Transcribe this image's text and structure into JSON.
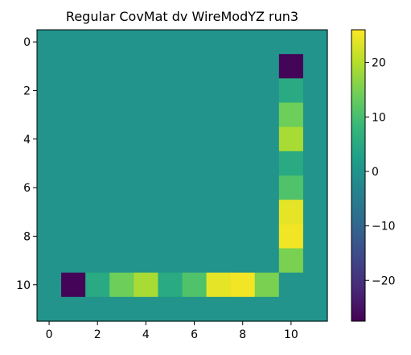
{
  "chart_data": {
    "type": "heatmap",
    "title": "Regular CovMat dv WireModYZ run3",
    "xlabel": "",
    "ylabel": "",
    "rows": 12,
    "cols": 12,
    "x_ticks": [
      0,
      2,
      4,
      6,
      8,
      10
    ],
    "y_ticks": [
      0,
      2,
      4,
      6,
      8,
      10
    ],
    "x_tick_labels": [
      "0",
      "2",
      "4",
      "6",
      "8",
      "10"
    ],
    "y_tick_labels": [
      "0",
      "2",
      "4",
      "6",
      "8",
      "10"
    ],
    "colormap": "viridis",
    "vmin": -27.5,
    "vmax": 26,
    "colorbar_ticks": [
      20,
      10,
      0,
      -10,
      -20
    ],
    "colorbar_tick_labels": [
      "20",
      "10",
      "0",
      "−10",
      "−20"
    ],
    "matrix": [
      [
        0,
        0,
        0,
        0,
        0,
        0,
        0,
        0,
        0,
        0,
        0,
        0
      ],
      [
        0,
        0,
        0,
        0,
        0,
        0,
        0,
        0,
        0,
        0,
        -27,
        0
      ],
      [
        0,
        0,
        0,
        0,
        0,
        0,
        0,
        0,
        0,
        0,
        5,
        0
      ],
      [
        0,
        0,
        0,
        0,
        0,
        0,
        0,
        0,
        0,
        0,
        14,
        0
      ],
      [
        0,
        0,
        0,
        0,
        0,
        0,
        0,
        0,
        0,
        0,
        19,
        0
      ],
      [
        0,
        0,
        0,
        0,
        0,
        0,
        0,
        0,
        0,
        0,
        5,
        0
      ],
      [
        0,
        0,
        0,
        0,
        0,
        0,
        0,
        0,
        0,
        0,
        11,
        0
      ],
      [
        0,
        0,
        0,
        0,
        0,
        0,
        0,
        0,
        0,
        0,
        24,
        0
      ],
      [
        0,
        0,
        0,
        0,
        0,
        0,
        0,
        0,
        0,
        0,
        25,
        0
      ],
      [
        0,
        0,
        0,
        0,
        0,
        0,
        0,
        0,
        0,
        0,
        15,
        0
      ],
      [
        0,
        -27,
        5,
        14,
        19,
        5,
        11,
        24,
        25,
        15,
        0,
        0
      ],
      [
        0,
        0,
        0,
        0,
        0,
        0,
        0,
        0,
        0,
        0,
        0,
        0
      ]
    ]
  }
}
